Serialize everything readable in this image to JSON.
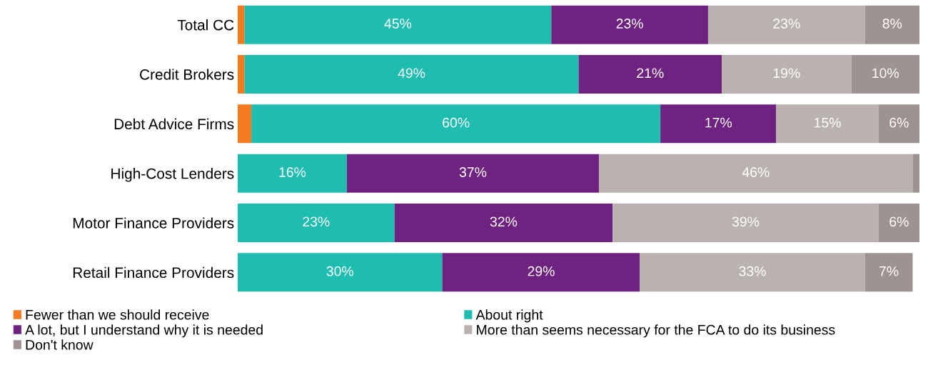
{
  "chart_data": {
    "type": "bar",
    "orientation": "horizontal",
    "stacked": true,
    "categories": [
      "Total CC",
      "Credit Brokers",
      "Debt Advice Firms",
      "High-Cost Lenders",
      "Motor Finance Providers",
      "Retail Finance Providers"
    ],
    "series": [
      {
        "name": "Fewer than we should receive",
        "color": "#f47b20",
        "values": [
          1,
          1,
          2,
          0,
          0,
          0
        ],
        "value_labels": [
          null,
          null,
          null,
          null,
          null,
          null
        ]
      },
      {
        "name": "About right",
        "color": "#1fbcb0",
        "values": [
          45,
          49,
          60,
          16,
          23,
          30
        ],
        "value_labels": [
          "45%",
          "49%",
          "60%",
          "16%",
          "23%",
          "30%"
        ]
      },
      {
        "name": "A lot, but I understand why it is needed",
        "color": "#6f2381",
        "values": [
          23,
          21,
          17,
          37,
          32,
          29
        ],
        "value_labels": [
          "23%",
          "21%",
          "17%",
          "37%",
          "32%",
          "29%"
        ]
      },
      {
        "name": "More than seems necessary for the FCA to do its business",
        "color": "#bab2ae",
        "values": [
          23,
          19,
          15,
          46,
          39,
          33
        ],
        "value_labels": [
          "23%",
          "19%",
          "15%",
          "46%",
          "39%",
          "33%"
        ]
      },
      {
        "name": "Don't know",
        "color": "#9e9391",
        "values": [
          8,
          10,
          6,
          1,
          6,
          7
        ],
        "value_labels": [
          "8%",
          "10%",
          "6%",
          null,
          "6%",
          "7%"
        ]
      }
    ],
    "xlim": [
      0,
      100
    ],
    "tick_labels": "y",
    "grid": false,
    "legend": "bottom"
  }
}
